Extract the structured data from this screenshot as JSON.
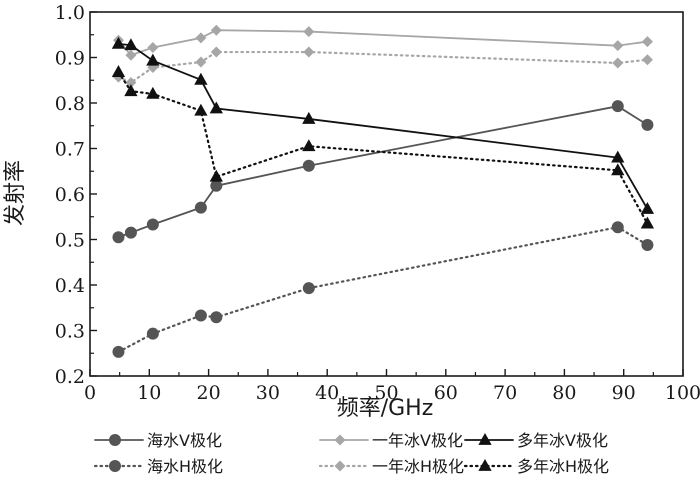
{
  "chart_data": {
    "type": "line",
    "xlabel": "频率/GHz",
    "ylabel": "发射率",
    "xlim": [
      0,
      100
    ],
    "ylim": [
      0.2,
      1.0
    ],
    "xticks": [
      "0",
      "10",
      "20",
      "30",
      "40",
      "50",
      "60",
      "70",
      "80",
      "90",
      "100"
    ],
    "yticks": [
      "0.2",
      "0.3",
      "0.4",
      "0.5",
      "0.6",
      "0.7",
      "0.8",
      "0.9",
      "1.0"
    ],
    "grid": false,
    "legend_position": "bottom",
    "series": [
      {
        "name": "海水V极化",
        "color": "#555555",
        "dash": "solid",
        "marker": "circle",
        "x": [
          4.8,
          6.9,
          10.6,
          18.7,
          21.3,
          36.9,
          89.0,
          94.0
        ],
        "y": [
          0.505,
          0.515,
          0.533,
          0.57,
          0.618,
          0.662,
          0.793,
          0.752
        ]
      },
      {
        "name": "一年冰V极化",
        "color": "#a6a6a6",
        "dash": "solid",
        "marker": "diamond",
        "x": [
          4.8,
          6.9,
          10.6,
          18.7,
          21.3,
          36.9,
          89.0,
          94.0
        ],
        "y": [
          0.938,
          0.905,
          0.922,
          0.943,
          0.96,
          0.957,
          0.926,
          0.935
        ]
      },
      {
        "name": "多年冰V极化",
        "color": "#111111",
        "dash": "solid",
        "marker": "triangle",
        "x": [
          4.8,
          6.9,
          10.6,
          18.7,
          21.3,
          36.9,
          89.0,
          94.0
        ],
        "y": [
          0.93,
          0.927,
          0.893,
          0.851,
          0.788,
          0.765,
          0.68,
          0.567
        ]
      },
      {
        "name": "海水H极化",
        "color": "#555555",
        "dash": "dotted",
        "marker": "circle",
        "x": [
          4.8,
          10.6,
          18.7,
          21.3,
          36.9,
          89.0,
          94.0
        ],
        "y": [
          0.253,
          0.293,
          0.333,
          0.329,
          0.393,
          0.527,
          0.488
        ]
      },
      {
        "name": "一年冰H极化",
        "color": "#a6a6a6",
        "dash": "dotted",
        "marker": "diamond",
        "x": [
          4.8,
          6.9,
          10.6,
          18.7,
          21.3,
          36.9,
          89.0,
          94.0
        ],
        "y": [
          0.857,
          0.845,
          0.878,
          0.89,
          0.912,
          0.912,
          0.888,
          0.895
        ]
      },
      {
        "name": "多年冰H极化",
        "color": "#111111",
        "dash": "dotted",
        "marker": "triangle",
        "x": [
          4.8,
          6.9,
          10.6,
          18.7,
          21.3,
          36.9,
          89.0,
          94.0
        ],
        "y": [
          0.868,
          0.826,
          0.82,
          0.783,
          0.638,
          0.705,
          0.652,
          0.535
        ]
      }
    ]
  }
}
